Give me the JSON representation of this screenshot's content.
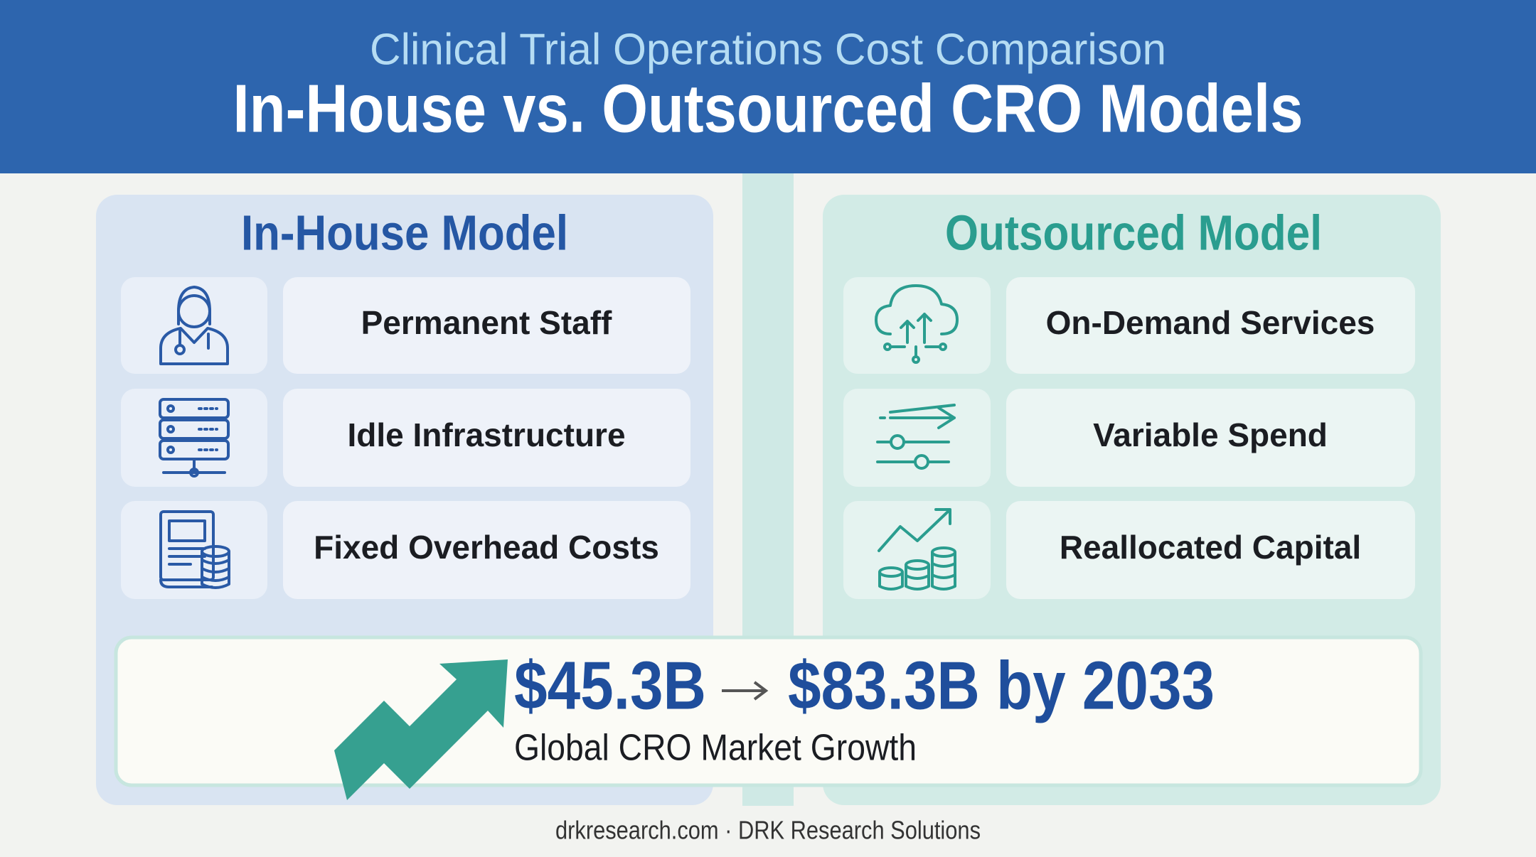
{
  "header": {
    "subtitle": "Clinical Trial Operations Cost Comparison",
    "title": "In-House vs. Outsourced CRO Models"
  },
  "panels": [
    {
      "title": "In-House Model",
      "items": [
        "Permanent Staff",
        "Idle Infrastructure",
        "Fixed Overhead Costs"
      ]
    },
    {
      "title": "Outsourced Model",
      "items": [
        "On-Demand Services",
        "Variable Spend",
        "Reallocated Capital"
      ]
    }
  ],
  "growth": {
    "start": "$45.3B",
    "end": "$83.3B by 2033",
    "caption": "Global CRO Market Growth"
  },
  "footer": "drkresearch.com · DRK Research Solutions"
}
